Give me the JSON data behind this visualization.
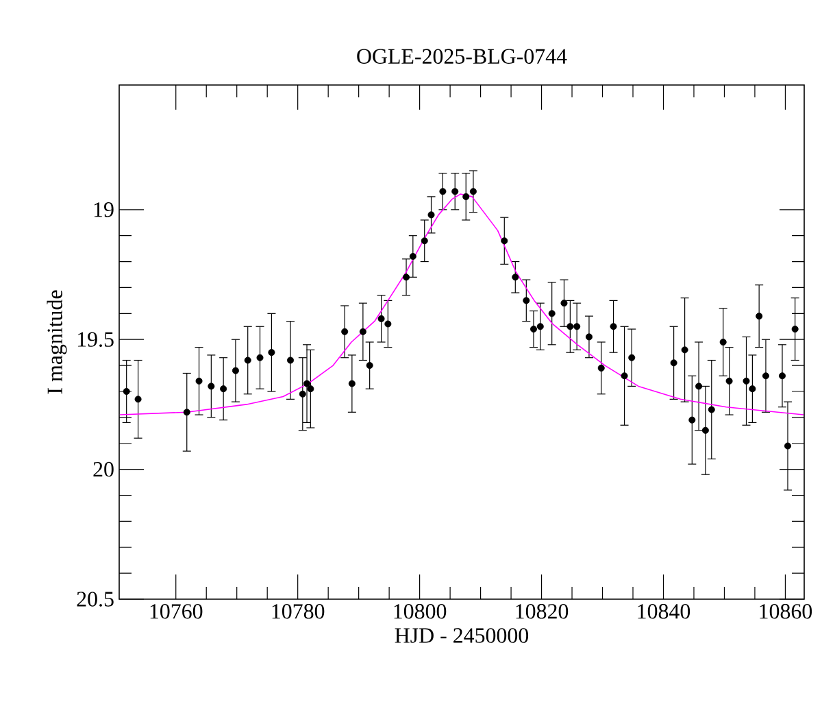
{
  "chart_data": {
    "type": "scatter",
    "title": "OGLE-2025-BLG-0744",
    "xlabel": "HJD - 2450000",
    "ylabel": "I magnitude",
    "xlim": [
      10750.7,
      10863.1
    ],
    "ylim": [
      20.5,
      18.52
    ],
    "xticks": [
      10760,
      10780,
      10800,
      10820,
      10840,
      10860
    ],
    "yticks": [
      19,
      19.5,
      20,
      20.5
    ],
    "series": [
      {
        "marker": "circle",
        "color": "#000000",
        "x": [
          10751.9,
          10753.8,
          10761.8,
          10763.8,
          10765.8,
          10767.8,
          10769.8,
          10771.8,
          10773.8,
          10775.7,
          10778.8,
          10780.8,
          10781.5,
          10782.1,
          10787.7,
          10788.9,
          10790.7,
          10791.8,
          10793.7,
          10794.8,
          10797.8,
          10798.9,
          10800.8,
          10801.9,
          10803.8,
          10805.8,
          10807.6,
          10808.8,
          10813.9,
          10815.7,
          10817.5,
          10818.7,
          10819.8,
          10821.7,
          10823.7,
          10824.7,
          10825.8,
          10827.8,
          10829.8,
          10831.8,
          10833.6,
          10834.8,
          10841.7,
          10843.5,
          10844.7,
          10845.8,
          10846.9,
          10847.9,
          10849.8,
          10850.8,
          10853.6,
          10854.6,
          10855.7,
          10856.8,
          10859.5,
          10860.4,
          10861.6
        ],
        "values": [
          19.7,
          19.73,
          19.78,
          19.66,
          19.68,
          19.69,
          19.62,
          19.58,
          19.57,
          19.55,
          19.58,
          19.71,
          19.67,
          19.69,
          19.47,
          19.67,
          19.47,
          19.6,
          19.42,
          19.44,
          19.26,
          19.18,
          19.12,
          19.02,
          18.93,
          18.93,
          18.95,
          18.93,
          19.12,
          19.26,
          19.35,
          19.46,
          19.45,
          19.4,
          19.36,
          19.45,
          19.45,
          19.49,
          19.61,
          19.45,
          19.64,
          19.57,
          19.59,
          19.54,
          19.81,
          19.68,
          19.85,
          19.77,
          19.51,
          19.66,
          19.66,
          19.69,
          19.41,
          19.64,
          19.64,
          19.91,
          19.46
        ],
        "errors": [
          0.12,
          0.15,
          0.15,
          0.13,
          0.12,
          0.12,
          0.12,
          0.13,
          0.12,
          0.15,
          0.15,
          0.14,
          0.15,
          0.15,
          0.1,
          0.11,
          0.11,
          0.09,
          0.09,
          0.09,
          0.07,
          0.08,
          0.08,
          0.07,
          0.07,
          0.07,
          0.09,
          0.08,
          0.09,
          0.06,
          0.08,
          0.07,
          0.09,
          0.12,
          0.09,
          0.1,
          0.09,
          0.08,
          0.1,
          0.1,
          0.19,
          0.11,
          0.14,
          0.2,
          0.17,
          0.17,
          0.17,
          0.19,
          0.13,
          0.13,
          0.17,
          0.13,
          0.12,
          0.14,
          0.12,
          0.17,
          0.12
        ]
      },
      {
        "type": "line",
        "color": "#ff00ff",
        "x": [
          10750.8,
          10761.8,
          10771.6,
          10777.6,
          10781.7,
          10785.8,
          10788.8,
          10792.6,
          10794.8,
          10797.8,
          10800.8,
          10803.1,
          10805.3,
          10806.7,
          10808.6,
          10812.8,
          10815.8,
          10818.8,
          10821.8,
          10825.9,
          10830.4,
          10835.9,
          10842.8,
          10850.3,
          10863.0
        ],
        "values": [
          19.79,
          19.78,
          19.75,
          19.72,
          19.67,
          19.6,
          19.51,
          19.43,
          19.35,
          19.24,
          19.11,
          19.02,
          18.96,
          18.94,
          18.95,
          19.08,
          19.24,
          19.35,
          19.44,
          19.52,
          19.6,
          19.68,
          19.73,
          19.76,
          19.79
        ]
      }
    ]
  }
}
